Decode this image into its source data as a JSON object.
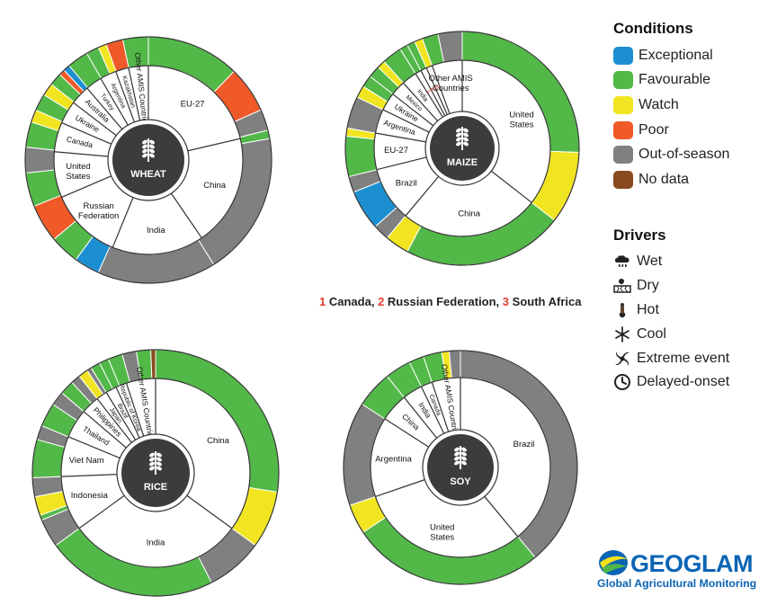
{
  "legend": {
    "conditions_title": "Conditions",
    "conditions": [
      {
        "label": "Exceptional",
        "color": "#1c8fd1"
      },
      {
        "label": "Favourable",
        "color": "#52b848"
      },
      {
        "label": "Watch",
        "color": "#f1e521"
      },
      {
        "label": "Poor",
        "color": "#ef5a28"
      },
      {
        "label": "Out-of-season",
        "color": "#808080"
      },
      {
        "label": "No data",
        "color": "#8a4a1f"
      }
    ],
    "drivers_title": "Drivers",
    "drivers": [
      {
        "label": "Wet",
        "icon": "wet-icon"
      },
      {
        "label": "Dry",
        "icon": "dry-icon"
      },
      {
        "label": "Hot",
        "icon": "hot-icon"
      },
      {
        "label": "Cool",
        "icon": "cool-icon"
      },
      {
        "label": "Extreme event",
        "icon": "extreme-event-icon"
      },
      {
        "label": "Delayed-onset",
        "icon": "delayed-onset-icon"
      }
    ]
  },
  "footnote": {
    "n1": "1",
    "t1": "Canada,",
    "n2": "2",
    "t2": "Russian Federation,",
    "n3": "3",
    "t3": "South Africa"
  },
  "logo": {
    "word": "GEOGLAM",
    "subtitle": "Global Agricultural Monitoring"
  },
  "chart_data": [
    {
      "type": "donut",
      "crop": "WHEAT",
      "inner_ring_countries": [
        {
          "name": "EU-27",
          "share": 19
        },
        {
          "name": "China",
          "share": 17
        },
        {
          "name": "India",
          "share": 14
        },
        {
          "name": "Russian Federation",
          "share": 11
        },
        {
          "name": "United States",
          "share": 7
        },
        {
          "name": "Canada",
          "share": 4.5
        },
        {
          "name": "Ukraine",
          "share": 3.5
        },
        {
          "name": "Australia",
          "share": 3
        },
        {
          "name": "Turkey",
          "share": 2.5
        },
        {
          "name": "Argentina",
          "share": 2.5
        },
        {
          "name": "Kazakhstan",
          "share": 2
        },
        {
          "name": "Other AMIS Countries",
          "share": 3
        }
      ],
      "outer_ring_conditions": [
        [
          "Favourable",
          11
        ],
        [
          "Poor",
          5.5
        ],
        [
          "Out-of-season",
          2.5
        ],
        [
          "Favourable",
          1
        ],
        [
          "Out-of-season",
          17
        ],
        [
          "Out-of-season",
          14
        ],
        [
          "Exceptional",
          3
        ],
        [
          "Favourable",
          3.5
        ],
        [
          "Poor",
          4.5
        ],
        [
          "Favourable",
          4
        ],
        [
          "Out-of-season",
          3
        ],
        [
          "Favourable",
          3
        ],
        [
          "Watch",
          1.5
        ],
        [
          "Favourable",
          2
        ],
        [
          "Watch",
          1.5
        ],
        [
          "Favourable",
          1.5
        ],
        [
          "Poor",
          0.7
        ],
        [
          "Exceptional",
          0.8
        ],
        [
          "Favourable",
          2.5
        ],
        [
          "Favourable",
          1.5
        ],
        [
          "Watch",
          1
        ],
        [
          "Poor",
          2
        ],
        [
          "Favourable",
          3
        ]
      ]
    },
    {
      "type": "donut",
      "crop": "MAIZE",
      "inner_ring_countries": [
        {
          "name": "United States",
          "share": 32
        },
        {
          "name": "China",
          "share": 23
        },
        {
          "name": "Brazil",
          "share": 9
        },
        {
          "name": "EU-27",
          "share": 6
        },
        {
          "name": "Argentina",
          "share": 4
        },
        {
          "name": "Ukraine",
          "share": 3
        },
        {
          "name": "Mexico",
          "share": 2.5
        },
        {
          "name": "India",
          "share": 2.5
        },
        {
          "name": "1",
          "share": 1
        },
        {
          "name": "2",
          "share": 1
        },
        {
          "name": "3",
          "share": 1
        },
        {
          "name": "Other AMIS Countries",
          "share": 5
        }
      ],
      "outer_ring_conditions": [
        [
          "Favourable",
          23
        ],
        [
          "Watch",
          9
        ],
        [
          "Favourable",
          20
        ],
        [
          "Watch",
          3
        ],
        [
          "Out-of-season",
          2
        ],
        [
          "Exceptional",
          5
        ],
        [
          "Out-of-season",
          2
        ],
        [
          "Favourable",
          5
        ],
        [
          "Watch",
          1
        ],
        [
          "Out-of-season",
          4
        ],
        [
          "Watch",
          1.5
        ],
        [
          "Favourable",
          1.5
        ],
        [
          "Favourable",
          1.5
        ],
        [
          "Watch",
          1
        ],
        [
          "Favourable",
          2.5
        ],
        [
          "Favourable",
          1
        ],
        [
          "Favourable",
          1
        ],
        [
          "Watch",
          1
        ],
        [
          "Favourable",
          2
        ],
        [
          "Out-of-season",
          3
        ]
      ]
    },
    {
      "type": "donut",
      "crop": "RICE",
      "inner_ring_countries": [
        {
          "name": "China",
          "share": 28
        },
        {
          "name": "India",
          "share": 24
        },
        {
          "name": "Indonesia",
          "share": 7.5
        },
        {
          "name": "Viet Nam",
          "share": 5.5
        },
        {
          "name": "Thailand",
          "share": 4
        },
        {
          "name": "Philippines",
          "share": 2.5
        },
        {
          "name": "Japan",
          "share": 1.5
        },
        {
          "name": "Brazil",
          "share": 1.5
        },
        {
          "name": "Republic of Korea",
          "share": 1.5
        },
        {
          "name": "Other AMIS Countries",
          "share": 4
        }
      ],
      "outer_ring_conditions": [
        [
          "Favourable",
          22
        ],
        [
          "Watch",
          6
        ],
        [
          "Out-of-season",
          6
        ],
        [
          "Favourable",
          18
        ],
        [
          "Out-of-season",
          3
        ],
        [
          "Favourable",
          0.5
        ],
        [
          "Watch",
          2
        ],
        [
          "Out-of-season",
          2
        ],
        [
          "Favourable",
          4
        ],
        [
          "Out-of-season",
          1.5
        ],
        [
          "Favourable",
          2.5
        ],
        [
          "Out-of-season",
          1.5
        ],
        [
          "Favourable",
          1.5
        ],
        [
          "Out-of-season",
          1
        ],
        [
          "Watch",
          1
        ],
        [
          "Out-of-season",
          0.5
        ],
        [
          "Favourable",
          1
        ],
        [
          "Favourable",
          1
        ],
        [
          "Favourable",
          1.5
        ],
        [
          "Out-of-season",
          1.5
        ],
        [
          "Favourable",
          1.5
        ],
        [
          "No data",
          0.5
        ]
      ]
    },
    {
      "type": "donut",
      "crop": "SOY",
      "inner_ring_countries": [
        {
          "name": "Brazil",
          "share": 38
        },
        {
          "name": "United States",
          "share": 30
        },
        {
          "name": "Argentina",
          "share": 14
        },
        {
          "name": "China",
          "share": 5
        },
        {
          "name": "India",
          "share": 3.5
        },
        {
          "name": "Canada",
          "share": 2
        },
        {
          "name": "Other AMIS Countries",
          "share": 5
        }
      ],
      "outer_ring_conditions": [
        [
          "Out-of-season",
          38
        ],
        [
          "Favourable",
          26
        ],
        [
          "Watch",
          4
        ],
        [
          "Out-of-season",
          14
        ],
        [
          "Favourable",
          5
        ],
        [
          "Favourable",
          3.5
        ],
        [
          "Favourable",
          2
        ],
        [
          "Favourable",
          2.5
        ],
        [
          "Watch",
          1
        ],
        [
          "Out-of-season",
          1.5
        ]
      ]
    }
  ]
}
